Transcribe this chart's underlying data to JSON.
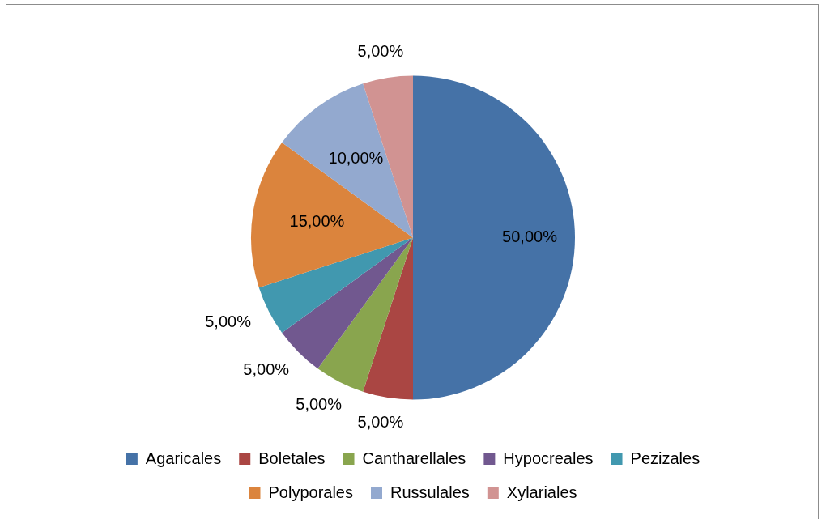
{
  "chart_data": {
    "type": "pie",
    "categories": [
      "Agaricales",
      "Boletales",
      "Cantharellales",
      "Hypocreales",
      "Pezizales",
      "Polyporales",
      "Russulales",
      "Xylariales"
    ],
    "values": [
      50,
      5,
      5,
      5,
      5,
      15,
      10,
      5
    ],
    "value_labels": [
      "50,00%",
      "5,00%",
      "5,00%",
      "5,00%",
      "5,00%",
      "15,00%",
      "10,00%",
      "5,00%"
    ],
    "colors": [
      "#4572a7",
      "#aa4643",
      "#89a54e",
      "#71588f",
      "#4198af",
      "#db843d",
      "#93a9cf",
      "#d19392"
    ],
    "legend": "bottom"
  }
}
